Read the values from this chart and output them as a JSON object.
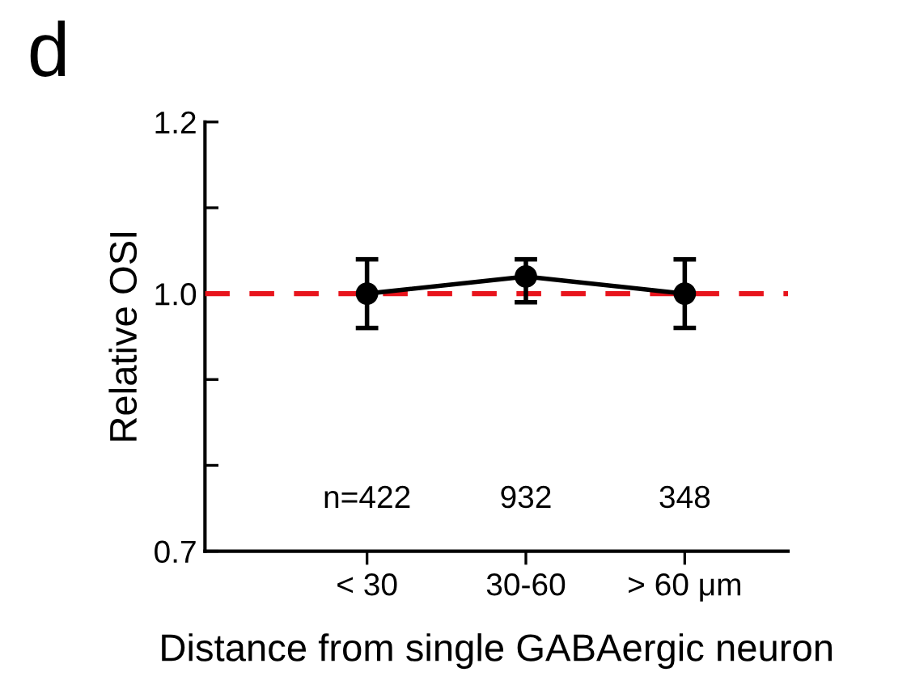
{
  "chart_data": {
    "type": "line",
    "title": "d",
    "ylabel": "Relative OSI",
    "xlabel": "Distance from single GABAergic neuron",
    "categories": [
      "< 30",
      "30-60",
      "> 60 μm"
    ],
    "series": [
      {
        "color": "#000000",
        "values": [
          1.0,
          1.02,
          1.0
        ],
        "errors": [
          [
            0.96,
            1.04
          ],
          [
            0.99,
            1.04
          ],
          [
            0.96,
            1.04
          ]
        ]
      }
    ],
    "ylim": [
      0.7,
      1.2
    ],
    "yticks": [
      0.7,
      {
        "value": 0.8,
        "label": null
      },
      {
        "value": 0.9,
        "label": null
      },
      {
        "value": 1.0,
        "label": "1.0"
      },
      {
        "value": 1.1,
        "label": null
      },
      1.2
    ],
    "marker": "circle",
    "line_style": "solid",
    "ref_lines": [
      {
        "axis": "y",
        "value": 1.0,
        "color": "#e8141c",
        "line_style": "dashed"
      }
    ],
    "annotations": [
      "n=422",
      "932",
      "348"
    ]
  }
}
